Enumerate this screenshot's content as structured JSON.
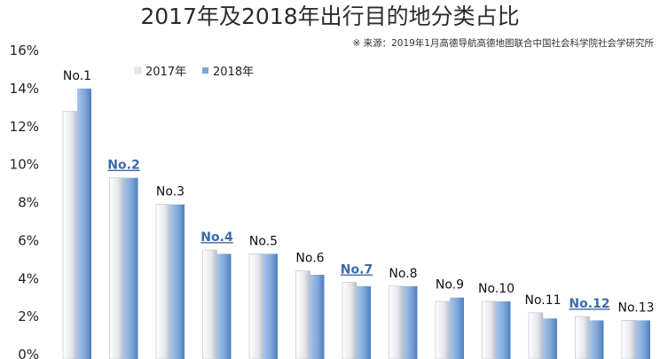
{
  "chart_data": {
    "type": "bar",
    "title": "2017年及2018年出行目的地分类占比",
    "source": "※ 来源：2019年1月高德导航高德地图联合中国社会科学院社会学研究所",
    "categories": [
      "No.1",
      "No.2",
      "No.3",
      "No.4",
      "No.5",
      "No.6",
      "No.7",
      "No.8",
      "No.9",
      "No.10",
      "No.11",
      "No.12",
      "No.13"
    ],
    "highlighted_categories": [
      "No.2",
      "No.4",
      "No.7",
      "No.12"
    ],
    "series": [
      {
        "name": "2017年",
        "values": [
          12.8,
          9.3,
          7.9,
          5.5,
          5.3,
          4.4,
          3.8,
          3.6,
          2.8,
          2.8,
          2.2,
          2.0,
          1.8
        ]
      },
      {
        "name": "2018年",
        "values": [
          14.0,
          9.3,
          7.9,
          5.3,
          5.3,
          4.2,
          3.6,
          3.6,
          3.0,
          2.8,
          1.9,
          1.8,
          1.8
        ]
      }
    ],
    "yticks": [
      "0%",
      "2%",
      "4%",
      "6%",
      "8%",
      "10%",
      "12%",
      "14%",
      "16%"
    ],
    "ylim": [
      0,
      16
    ],
    "legend_position": "top-left inside plot",
    "colors": {
      "2017年": "#e6e8ee",
      "2018年": "#7ea6d8",
      "highlight_label": "#3d6aa8"
    }
  }
}
